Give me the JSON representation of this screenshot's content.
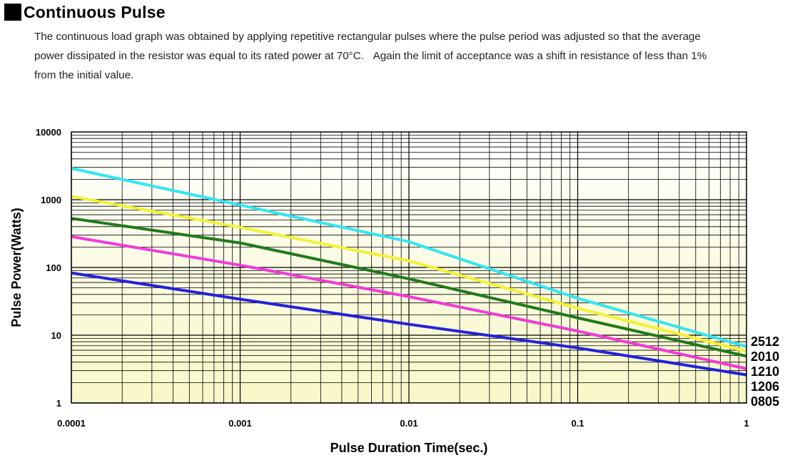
{
  "heading": {
    "title": "Continuous Pulse"
  },
  "description": {
    "lines": [
      "The continuous load graph was obtained by applying repetitive rectangular pulses where the pulse period was adjusted so that the average",
      "power dissipated in the resistor was equal to its rated power at 70°C.   Again the limit of acceptance was a shift in resistance of less than 1%",
      "from the initial value."
    ]
  },
  "chart_data": {
    "type": "line",
    "xscale": "log",
    "yscale": "log",
    "xlim": [
      0.0001,
      1
    ],
    "ylim": [
      1,
      10000
    ],
    "xlabel": "Pulse Duration Time(sec.)",
    "ylabel": "Pulse Power(Watts)",
    "xticks": [
      "0.0001",
      "0.001",
      "0.01",
      "0.1",
      "1"
    ],
    "yticks": [
      "10000",
      "1000",
      "100",
      "10",
      "1"
    ],
    "grid": true,
    "background": [
      "#ffffff",
      "#f7f7c8"
    ],
    "series": [
      {
        "name": "2512",
        "color": "#33e6f2",
        "x": [
          0.0001,
          0.01,
          0.0295,
          0.1,
          1
        ],
        "y": [
          2900,
          240,
          97,
          35,
          6.8
        ]
      },
      {
        "name": "2010",
        "color": "#f2f236",
        "x": [
          0.0001,
          0.001,
          0.01,
          0.1,
          1
        ],
        "y": [
          1120,
          390,
          125,
          25,
          5.8
        ]
      },
      {
        "name": "1210",
        "color": "#1f7a1a",
        "x": [
          0.0001,
          0.001,
          0.01,
          0.1,
          1
        ],
        "y": [
          530,
          230,
          68,
          18,
          4.9
        ]
      },
      {
        "name": "1206",
        "color": "#f23ad6",
        "x": [
          0.0001,
          0.001,
          0.01,
          0.1,
          1
        ],
        "y": [
          285,
          108,
          37,
          11.5,
          3.2
        ]
      },
      {
        "name": "0805",
        "color": "#2222dd",
        "x": [
          0.0001,
          0.001,
          0.01,
          0.1,
          1
        ],
        "y": [
          83,
          34,
          14.5,
          6.5,
          2.6
        ]
      }
    ],
    "legend": "right"
  }
}
